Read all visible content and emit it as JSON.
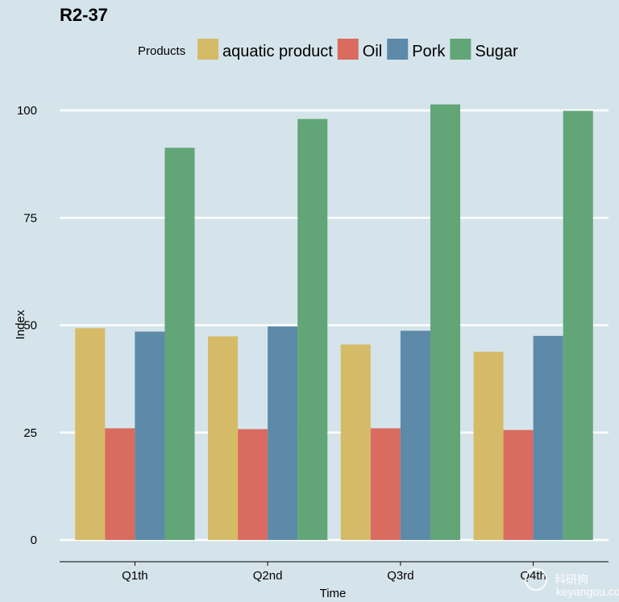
{
  "chart_data": {
    "type": "bar",
    "title": "R2-37",
    "legend_title": "Products",
    "legend_position": "top",
    "xlabel": "Time",
    "ylabel": "Index",
    "categories": [
      "Q1th",
      "Q2nd",
      "Q3rd",
      "Q4th"
    ],
    "ylim": [
      0,
      105
    ],
    "yticks": [
      0,
      25,
      50,
      75,
      100
    ],
    "grid": "horizontal",
    "series": [
      {
        "name": "aquatic product",
        "color": "#d5bb67",
        "values": [
          49.3,
          47.4,
          45.5,
          43.8
        ]
      },
      {
        "name": "Oil",
        "color": "#d96b5f",
        "values": [
          26.0,
          25.8,
          26.0,
          25.6
        ]
      },
      {
        "name": "Pork",
        "color": "#5c8aa8",
        "values": [
          48.5,
          49.7,
          48.7,
          47.5
        ]
      },
      {
        "name": "Sugar",
        "color": "#62a577",
        "values": [
          91.3,
          98.0,
          101.4,
          99.9
        ]
      }
    ]
  },
  "watermark": {
    "text": "科研狗",
    "subtext": "keyangou.com"
  }
}
